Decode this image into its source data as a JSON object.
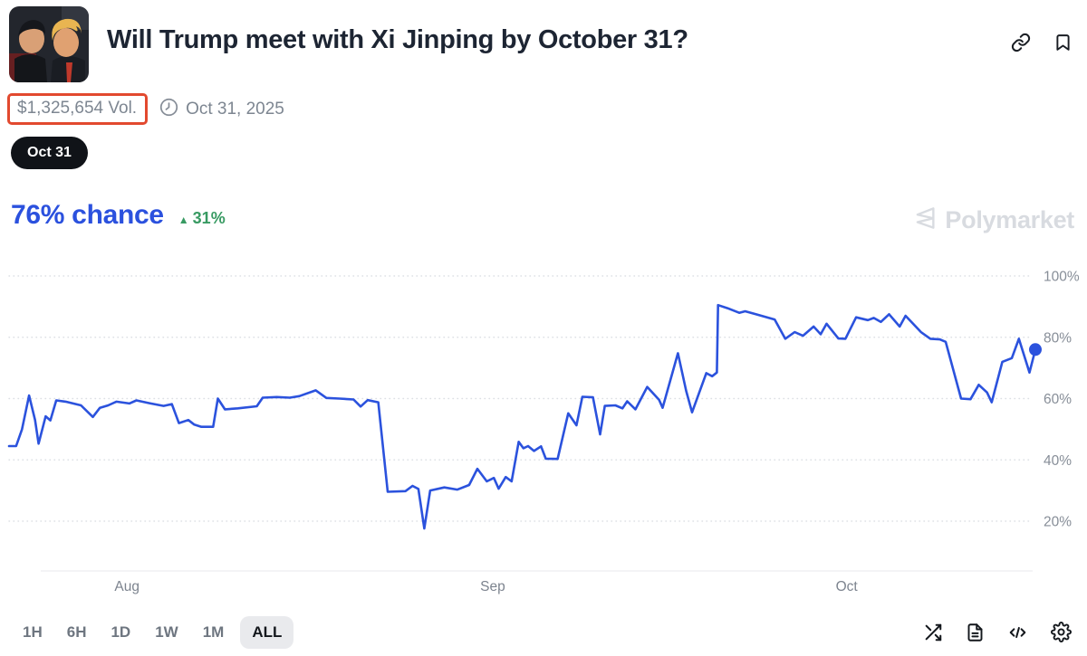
{
  "header": {
    "title": "Will Trump meet with Xi Jinping by October 31?",
    "volume": "$1,325,654 Vol.",
    "end_date": "Oct 31, 2025",
    "outcome_tag": "Oct 31",
    "chance_text": "76% chance",
    "change_arrow": "▲",
    "change_text": "31%",
    "watermark_text": "Polymarket"
  },
  "icons": {
    "header": [
      "link-icon",
      "bookmark-icon"
    ],
    "meta": [
      "clock-icon"
    ],
    "watermark": [
      "polymarket-logo-icon"
    ],
    "footer": [
      "shuffle-icon",
      "document-icon",
      "code-icon",
      "settings-icon"
    ]
  },
  "colors": {
    "accent_blue": "#2b51de",
    "chart_line": "#2b52dd",
    "positive_green": "#389a62",
    "annotation_red": "#e2492f",
    "tag_black": "#101318",
    "muted_gray": "#7d8691",
    "watermark_gray": "#d8dbe0",
    "grid_gray": "#dcdfe4"
  },
  "toolbar": {
    "ranges": [
      "1H",
      "6H",
      "1D",
      "1W",
      "1M",
      "ALL"
    ],
    "selected": "ALL"
  },
  "chart_data": {
    "type": "line",
    "title": "Market probability over time (Yes, Oct 31)",
    "x_unit": "days (ALL range, late Jul – mid Oct 2025)",
    "x_max": 87,
    "x_ticks": [
      {
        "label": "Aug",
        "day": 10
      },
      {
        "label": "Sep",
        "day": 41
      },
      {
        "label": "Oct",
        "day": 71
      }
    ],
    "y_ticks": [
      {
        "label": "100%",
        "value": 100
      },
      {
        "label": "80%",
        "value": 80
      },
      {
        "label": "60%",
        "value": 60
      },
      {
        "label": "40%",
        "value": 40
      },
      {
        "label": "20%",
        "value": 20
      }
    ],
    "ylim_grid": [
      20,
      100
    ],
    "grid": "dotted-horizontal",
    "legend": "none",
    "last_value": 76,
    "points": [
      [
        0.0,
        44.5
      ],
      [
        0.6,
        44.5
      ],
      [
        1.1,
        50
      ],
      [
        1.7,
        61
      ],
      [
        2.2,
        53
      ],
      [
        2.5,
        45.3
      ],
      [
        3.1,
        54.2
      ],
      [
        3.5,
        52.9
      ],
      [
        4.0,
        59.4
      ],
      [
        4.8,
        59
      ],
      [
        6.1,
        57.8
      ],
      [
        7.1,
        54
      ],
      [
        7.7,
        57
      ],
      [
        8.4,
        57.8
      ],
      [
        9.1,
        59
      ],
      [
        10.2,
        58.4
      ],
      [
        10.8,
        59.4
      ],
      [
        11.9,
        58.5
      ],
      [
        13.1,
        57.6
      ],
      [
        13.8,
        58.2
      ],
      [
        14.4,
        52
      ],
      [
        15.2,
        53
      ],
      [
        15.7,
        51.5
      ],
      [
        16.3,
        50.8
      ],
      [
        17.3,
        50.8
      ],
      [
        17.7,
        60
      ],
      [
        18.3,
        56.5
      ],
      [
        19.4,
        56.8
      ],
      [
        21.0,
        57.5
      ],
      [
        21.5,
        60.3
      ],
      [
        22.7,
        60.5
      ],
      [
        23.8,
        60.3
      ],
      [
        24.6,
        60.8
      ],
      [
        26.0,
        62.7
      ],
      [
        26.9,
        60.2
      ],
      [
        28.0,
        60
      ],
      [
        29.2,
        59.7
      ],
      [
        29.8,
        57.4
      ],
      [
        30.4,
        59.5
      ],
      [
        31.3,
        58.8
      ],
      [
        32.1,
        29.6
      ],
      [
        33.6,
        29.8
      ],
      [
        34.2,
        31.5
      ],
      [
        34.7,
        30.5
      ],
      [
        35.2,
        17.6
      ],
      [
        35.7,
        30
      ],
      [
        36.9,
        31
      ],
      [
        38.0,
        30.3
      ],
      [
        39.0,
        31.8
      ],
      [
        39.7,
        37.1
      ],
      [
        40.5,
        33
      ],
      [
        41.1,
        34.1
      ],
      [
        41.5,
        30.6
      ],
      [
        42.1,
        34.4
      ],
      [
        42.6,
        33
      ],
      [
        43.2,
        45.9
      ],
      [
        43.6,
        43.8
      ],
      [
        44.0,
        44.5
      ],
      [
        44.5,
        42.9
      ],
      [
        45.1,
        44.4
      ],
      [
        45.5,
        40.4
      ],
      [
        46.5,
        40.3
      ],
      [
        47.4,
        55.2
      ],
      [
        48.1,
        51.3
      ],
      [
        48.6,
        60.6
      ],
      [
        49.5,
        60.4
      ],
      [
        50.1,
        48.3
      ],
      [
        50.5,
        57.6
      ],
      [
        51.4,
        57.8
      ],
      [
        52.0,
        56.8
      ],
      [
        52.4,
        59.1
      ],
      [
        53.1,
        56.5
      ],
      [
        54.1,
        63.8
      ],
      [
        55.1,
        59.6
      ],
      [
        55.4,
        57
      ],
      [
        56.7,
        74.8
      ],
      [
        57.4,
        62.5
      ],
      [
        57.9,
        55.5
      ],
      [
        59.1,
        68.3
      ],
      [
        59.6,
        67.3
      ],
      [
        60.0,
        68.5
      ],
      [
        60.1,
        90.5
      ],
      [
        60.9,
        89.5
      ],
      [
        61.9,
        88
      ],
      [
        62.4,
        88.5
      ],
      [
        63.3,
        87.5
      ],
      [
        64.9,
        85.8
      ],
      [
        65.8,
        79.5
      ],
      [
        66.6,
        81.7
      ],
      [
        67.3,
        80.5
      ],
      [
        68.2,
        83.5
      ],
      [
        68.8,
        81
      ],
      [
        69.3,
        84.4
      ],
      [
        70.3,
        79.6
      ],
      [
        70.9,
        79.5
      ],
      [
        71.8,
        86.5
      ],
      [
        72.8,
        85.6
      ],
      [
        73.3,
        86.3
      ],
      [
        73.9,
        85
      ],
      [
        74.6,
        87.5
      ],
      [
        75.5,
        83.5
      ],
      [
        76.0,
        87
      ],
      [
        77.3,
        81.7
      ],
      [
        78.1,
        79.5
      ],
      [
        78.9,
        79.3
      ],
      [
        79.4,
        78.5
      ],
      [
        80.7,
        60
      ],
      [
        81.5,
        59.8
      ],
      [
        82.2,
        64.5
      ],
      [
        82.9,
        62
      ],
      [
        83.3,
        58.8
      ],
      [
        84.2,
        72
      ],
      [
        85.0,
        73.2
      ],
      [
        85.6,
        79.5
      ],
      [
        86.5,
        68.5
      ],
      [
        87.0,
        76
      ]
    ]
  }
}
